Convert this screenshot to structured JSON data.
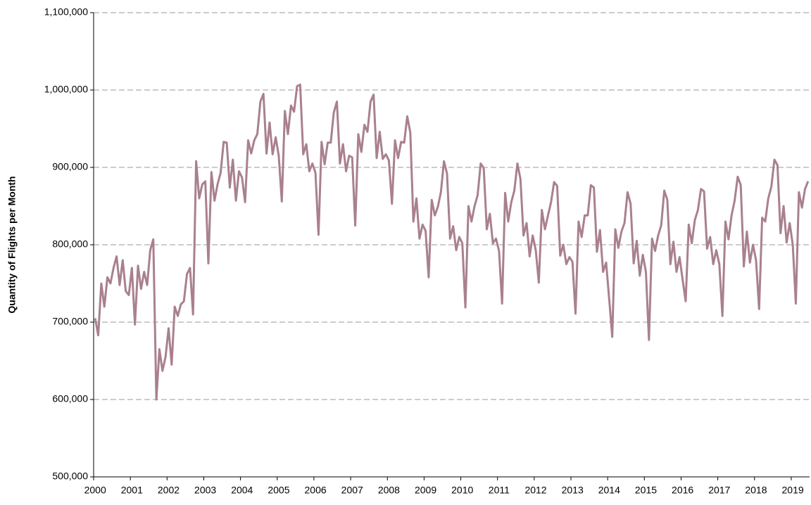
{
  "chart_data": {
    "type": "line",
    "y_label": "Quantity of Flights per Month",
    "color": "#a9808f",
    "grid": true,
    "ylim": [
      500000,
      1100000
    ],
    "yticks": [
      {
        "value": 500000,
        "label": "500,000"
      },
      {
        "value": 600000,
        "label": "600,000"
      },
      {
        "value": 700000,
        "label": "700,000"
      },
      {
        "value": 800000,
        "label": "800,000"
      },
      {
        "value": 900000,
        "label": "900,000"
      },
      {
        "value": 1000000,
        "label": "1,000,000"
      },
      {
        "value": 1100000,
        "label": "1,100,000"
      }
    ],
    "categories": [
      "2000",
      null,
      null,
      null,
      null,
      null,
      null,
      null,
      null,
      null,
      null,
      null,
      "2001",
      null,
      null,
      null,
      null,
      null,
      null,
      null,
      null,
      null,
      null,
      null,
      "2002",
      null,
      null,
      null,
      null,
      null,
      null,
      null,
      null,
      null,
      null,
      null,
      "2003",
      null,
      null,
      null,
      null,
      null,
      null,
      null,
      null,
      null,
      null,
      null,
      "2004",
      null,
      null,
      null,
      null,
      null,
      null,
      null,
      null,
      null,
      null,
      null,
      "2005",
      null,
      null,
      null,
      null,
      null,
      null,
      null,
      null,
      null,
      null,
      null,
      "2006",
      null,
      null,
      null,
      null,
      null,
      null,
      null,
      null,
      null,
      null,
      null,
      "2007",
      null,
      null,
      null,
      null,
      null,
      null,
      null,
      null,
      null,
      null,
      null,
      "2008",
      null,
      null,
      null,
      null,
      null,
      null,
      null,
      null,
      null,
      null,
      null,
      "2009",
      null,
      null,
      null,
      null,
      null,
      null,
      null,
      null,
      null,
      null,
      null,
      "2010",
      null,
      null,
      null,
      null,
      null,
      null,
      null,
      null,
      null,
      null,
      null,
      "2011",
      null,
      null,
      null,
      null,
      null,
      null,
      null,
      null,
      null,
      null,
      null,
      "2012",
      null,
      null,
      null,
      null,
      null,
      null,
      null,
      null,
      null,
      null,
      null,
      "2013",
      null,
      null,
      null,
      null,
      null,
      null,
      null,
      null,
      null,
      null,
      null,
      "2014",
      null,
      null,
      null,
      null,
      null,
      null,
      null,
      null,
      null,
      null,
      null,
      "2015",
      null,
      null,
      null,
      null,
      null,
      null,
      null,
      null,
      null,
      null,
      null,
      "2016",
      null,
      null,
      null,
      null,
      null,
      null,
      null,
      null,
      null,
      null,
      null,
      "2017",
      null,
      null,
      null,
      null,
      null,
      null,
      null,
      null,
      null,
      null,
      null,
      "2018",
      null,
      null,
      null,
      null,
      null,
      null,
      null,
      null,
      null,
      null,
      null,
      "2019",
      null,
      null,
      null,
      null,
      null
    ],
    "values": [
      705000,
      683000,
      750000,
      720000,
      758000,
      750000,
      770000,
      785000,
      748000,
      780000,
      740000,
      735000,
      770000,
      697000,
      773000,
      743000,
      765000,
      748000,
      793000,
      807000,
      600000,
      665000,
      637000,
      655000,
      692000,
      645000,
      720000,
      708000,
      723000,
      727000,
      762000,
      770000,
      710000,
      908000,
      860000,
      878000,
      882000,
      776000,
      894000,
      857000,
      878000,
      893000,
      933000,
      932000,
      874000,
      910000,
      857000,
      895000,
      887000,
      855000,
      935000,
      918000,
      935000,
      943000,
      985000,
      995000,
      918000,
      958000,
      917000,
      939000,
      915000,
      856000,
      973000,
      943000,
      980000,
      972000,
      1005000,
      1007000,
      917000,
      930000,
      895000,
      905000,
      893000,
      813000,
      933000,
      904000,
      932000,
      932000,
      971000,
      985000,
      905000,
      930000,
      895000,
      915000,
      913000,
      825000,
      943000,
      920000,
      955000,
      946000,
      985000,
      994000,
      912000,
      946000,
      911000,
      917000,
      909000,
      853000,
      935000,
      912000,
      933000,
      932000,
      966000,
      945000,
      830000,
      860000,
      808000,
      826000,
      818000,
      758000,
      858000,
      838000,
      849000,
      868000,
      908000,
      892000,
      808000,
      824000,
      793000,
      810000,
      802000,
      719000,
      850000,
      830000,
      850000,
      864000,
      905000,
      899000,
      820000,
      840000,
      802000,
      808000,
      792000,
      724000,
      867000,
      830000,
      855000,
      870000,
      905000,
      885000,
      812000,
      828000,
      785000,
      812000,
      793000,
      751000,
      845000,
      820000,
      838000,
      855000,
      881000,
      876000,
      786000,
      800000,
      775000,
      784000,
      778000,
      711000,
      830000,
      810000,
      838000,
      838000,
      877000,
      874000,
      791000,
      819000,
      765000,
      777000,
      730000,
      681000,
      820000,
      796000,
      817000,
      828000,
      868000,
      853000,
      776000,
      805000,
      760000,
      787000,
      765000,
      677000,
      808000,
      792000,
      812000,
      825000,
      870000,
      858000,
      775000,
      804000,
      765000,
      784000,
      755000,
      727000,
      826000,
      802000,
      832000,
      845000,
      872000,
      869000,
      795000,
      810000,
      775000,
      793000,
      775000,
      708000,
      830000,
      807000,
      838000,
      857000,
      888000,
      877000,
      772000,
      817000,
      777000,
      800000,
      780000,
      717000,
      835000,
      830000,
      860000,
      875000,
      910000,
      903000,
      815000,
      850000,
      803000,
      828000,
      800000,
      724000,
      868000,
      848000,
      872000,
      882000
    ]
  }
}
